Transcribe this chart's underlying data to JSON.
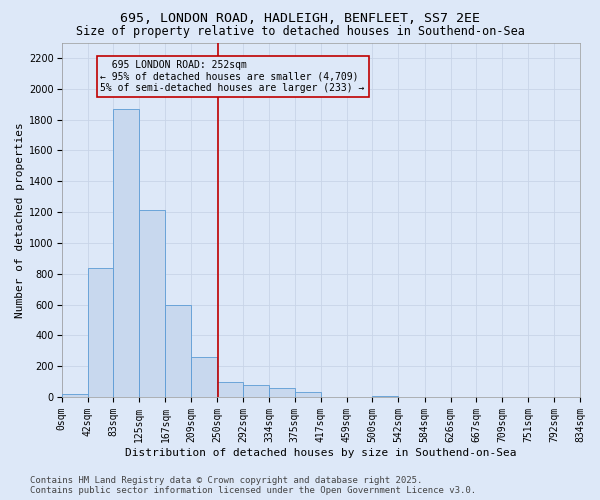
{
  "title_line1": "695, LONDON ROAD, HADLEIGH, BENFLEET, SS7 2EE",
  "title_line2": "Size of property relative to detached houses in Southend-on-Sea",
  "xlabel": "Distribution of detached houses by size in Southend-on-Sea",
  "ylabel": "Number of detached properties",
  "annotation_line1": "695 LONDON ROAD: 252sqm",
  "annotation_line2": "← 95% of detached houses are smaller (4,709)",
  "annotation_line3": "5% of semi-detached houses are larger (233) →",
  "footer_line1": "Contains HM Land Registry data © Crown copyright and database right 2025.",
  "footer_line2": "Contains public sector information licensed under the Open Government Licence v3.0.",
  "property_size_sqm": 252,
  "bin_edges": [
    0,
    42,
    83,
    125,
    167,
    209,
    250,
    292,
    334,
    375,
    417,
    459,
    500,
    542,
    584,
    626,
    667,
    709,
    751,
    792,
    834
  ],
  "bar_heights": [
    18,
    840,
    1870,
    1210,
    600,
    260,
    100,
    75,
    55,
    35,
    0,
    0,
    5,
    0,
    0,
    0,
    0,
    0,
    0,
    0
  ],
  "bar_color": "#c8d8ee",
  "bar_edge_color": "#5b9bd5",
  "vline_color": "#c00000",
  "vline_x": 252,
  "ylim": [
    0,
    2300
  ],
  "yticks": [
    0,
    200,
    400,
    600,
    800,
    1000,
    1200,
    1400,
    1600,
    1800,
    2000,
    2200
  ],
  "grid_color": "#c8d4e8",
  "background_color": "#dde8f8",
  "annotation_box_facecolor": "#dde8f8",
  "annotation_box_edgecolor": "#c00000",
  "title_fontsize": 9.5,
  "subtitle_fontsize": 8.5,
  "axis_label_fontsize": 8,
  "tick_fontsize": 7,
  "annotation_fontsize": 7,
  "footer_fontsize": 6.5
}
